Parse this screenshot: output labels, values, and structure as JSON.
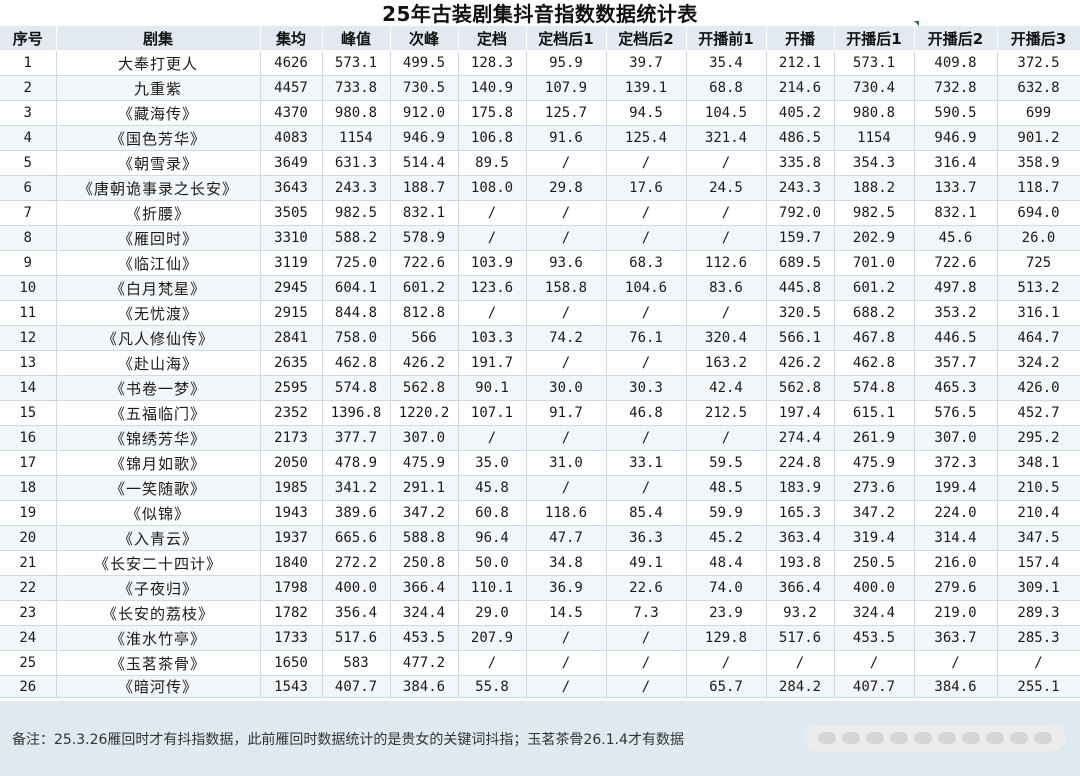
{
  "title": "25年古装剧集抖音指数数据统计表",
  "headers": [
    "序号",
    "剧集",
    "集均",
    "峰值",
    "次峰",
    "定档",
    "定档后1",
    "定档后2",
    "开播前1",
    "开播",
    "开播后1",
    "开播后2",
    "开播后3"
  ],
  "rows": [
    [
      "1",
      "大奉打更人",
      "4626",
      "573.1",
      "499.5",
      "128.3",
      "95.9",
      "39.7",
      "35.4",
      "212.1",
      "573.1",
      "409.8",
      "372.5"
    ],
    [
      "2",
      "九重紫",
      "4457",
      "733.8",
      "730.5",
      "140.9",
      "107.9",
      "139.1",
      "68.8",
      "214.6",
      "730.4",
      "732.8",
      "632.8"
    ],
    [
      "3",
      "《藏海传》",
      "4370",
      "980.8",
      "912.0",
      "175.8",
      "125.7",
      "94.5",
      "104.5",
      "405.2",
      "980.8",
      "590.5",
      "699"
    ],
    [
      "4",
      "《国色芳华》",
      "4083",
      "1154",
      "946.9",
      "106.8",
      "91.6",
      "125.4",
      "321.4",
      "486.5",
      "1154",
      "946.9",
      "901.2"
    ],
    [
      "5",
      "《朝雪录》",
      "3649",
      "631.3",
      "514.4",
      "89.5",
      "/",
      "/",
      "/",
      "335.8",
      "354.3",
      "316.4",
      "358.9"
    ],
    [
      "6",
      "《唐朝诡事录之长安》",
      "3643",
      "243.3",
      "188.7",
      "108.0",
      "29.8",
      "17.6",
      "24.5",
      "243.3",
      "188.2",
      "133.7",
      "118.7"
    ],
    [
      "7",
      "《折腰》",
      "3505",
      "982.5",
      "832.1",
      "/",
      "/",
      "/",
      "/",
      "792.0",
      "982.5",
      "832.1",
      "694.0"
    ],
    [
      "8",
      "《雁回时》",
      "3310",
      "588.2",
      "578.9",
      "/",
      "/",
      "/",
      "/",
      "159.7",
      "202.9",
      "45.6",
      "26.0"
    ],
    [
      "9",
      "《临江仙》",
      "3119",
      "725.0",
      "722.6",
      "103.9",
      "93.6",
      "68.3",
      "112.6",
      "689.5",
      "701.0",
      "722.6",
      "725"
    ],
    [
      "10",
      "《白月梵星》",
      "2945",
      "604.1",
      "601.2",
      "123.6",
      "158.8",
      "104.6",
      "83.6",
      "445.8",
      "601.2",
      "497.8",
      "513.2"
    ],
    [
      "11",
      "《无忧渡》",
      "2915",
      "844.8",
      "812.8",
      "/",
      "/",
      "/",
      "/",
      "320.5",
      "688.2",
      "353.2",
      "316.1"
    ],
    [
      "12",
      "《凡人修仙传》",
      "2841",
      "758.0",
      "566",
      "103.3",
      "74.2",
      "76.1",
      "320.4",
      "566.1",
      "467.8",
      "446.5",
      "464.7"
    ],
    [
      "13",
      "《赴山海》",
      "2635",
      "462.8",
      "426.2",
      "191.7",
      "/",
      "/",
      "163.2",
      "426.2",
      "462.8",
      "357.7",
      "324.2"
    ],
    [
      "14",
      "《书卷一梦》",
      "2595",
      "574.8",
      "562.8",
      "90.1",
      "30.0",
      "30.3",
      "42.4",
      "562.8",
      "574.8",
      "465.3",
      "426.0"
    ],
    [
      "15",
      "《五福临门》",
      "2352",
      "1396.8",
      "1220.2",
      "107.1",
      "91.7",
      "46.8",
      "212.5",
      "197.4",
      "615.1",
      "576.5",
      "452.7"
    ],
    [
      "16",
      "《锦绣芳华》",
      "2173",
      "377.7",
      "307.0",
      "/",
      "/",
      "/",
      "/",
      "274.4",
      "261.9",
      "307.0",
      "295.2"
    ],
    [
      "17",
      "《锦月如歌》",
      "2050",
      "478.9",
      "475.9",
      "35.0",
      "31.0",
      "33.1",
      "59.5",
      "224.8",
      "475.9",
      "372.3",
      "348.1"
    ],
    [
      "18",
      "《一笑随歌》",
      "1985",
      "341.2",
      "291.1",
      "45.8",
      "/",
      "/",
      "48.5",
      "183.9",
      "273.6",
      "199.4",
      "210.5"
    ],
    [
      "19",
      "《似锦》",
      "1943",
      "389.6",
      "347.2",
      "60.8",
      "118.6",
      "85.4",
      "59.9",
      "165.3",
      "347.2",
      "224.0",
      "210.4"
    ],
    [
      "20",
      "《入青云》",
      "1937",
      "665.6",
      "588.8",
      "96.4",
      "47.7",
      "36.3",
      "45.2",
      "363.4",
      "319.4",
      "314.4",
      "347.5"
    ],
    [
      "21",
      "《长安二十四计》",
      "1840",
      "272.2",
      "250.8",
      "50.0",
      "34.8",
      "49.1",
      "48.4",
      "193.8",
      "250.5",
      "216.0",
      "157.4"
    ],
    [
      "22",
      "《子夜归》",
      "1798",
      "400.0",
      "366.4",
      "110.1",
      "36.9",
      "22.6",
      "74.0",
      "366.4",
      "400.0",
      "279.6",
      "309.1"
    ],
    [
      "23",
      "《长安的荔枝》",
      "1782",
      "356.4",
      "324.4",
      "29.0",
      "14.5",
      "7.3",
      "23.9",
      "93.2",
      "324.4",
      "219.0",
      "289.3"
    ],
    [
      "24",
      "《淮水竹亭》",
      "1733",
      "517.6",
      "453.5",
      "207.9",
      "/",
      "/",
      "129.8",
      "517.6",
      "453.5",
      "363.7",
      "285.3"
    ],
    [
      "25",
      "《玉茗茶骨》",
      "1650",
      "583",
      "477.2",
      "/",
      "/",
      "/",
      "/",
      "/",
      "/",
      "/",
      "/"
    ],
    [
      "26",
      "《暗河传》",
      "1543",
      "407.7",
      "384.6",
      "55.8",
      "/",
      "/",
      "65.7",
      "284.2",
      "407.7",
      "384.6",
      "255.1"
    ]
  ],
  "note": "备注：25.3.26雁回时才有抖指数据，此前雁回时数据统计的是贵女的关键词抖指；玉茗茶骨26.1.4才有数据"
}
